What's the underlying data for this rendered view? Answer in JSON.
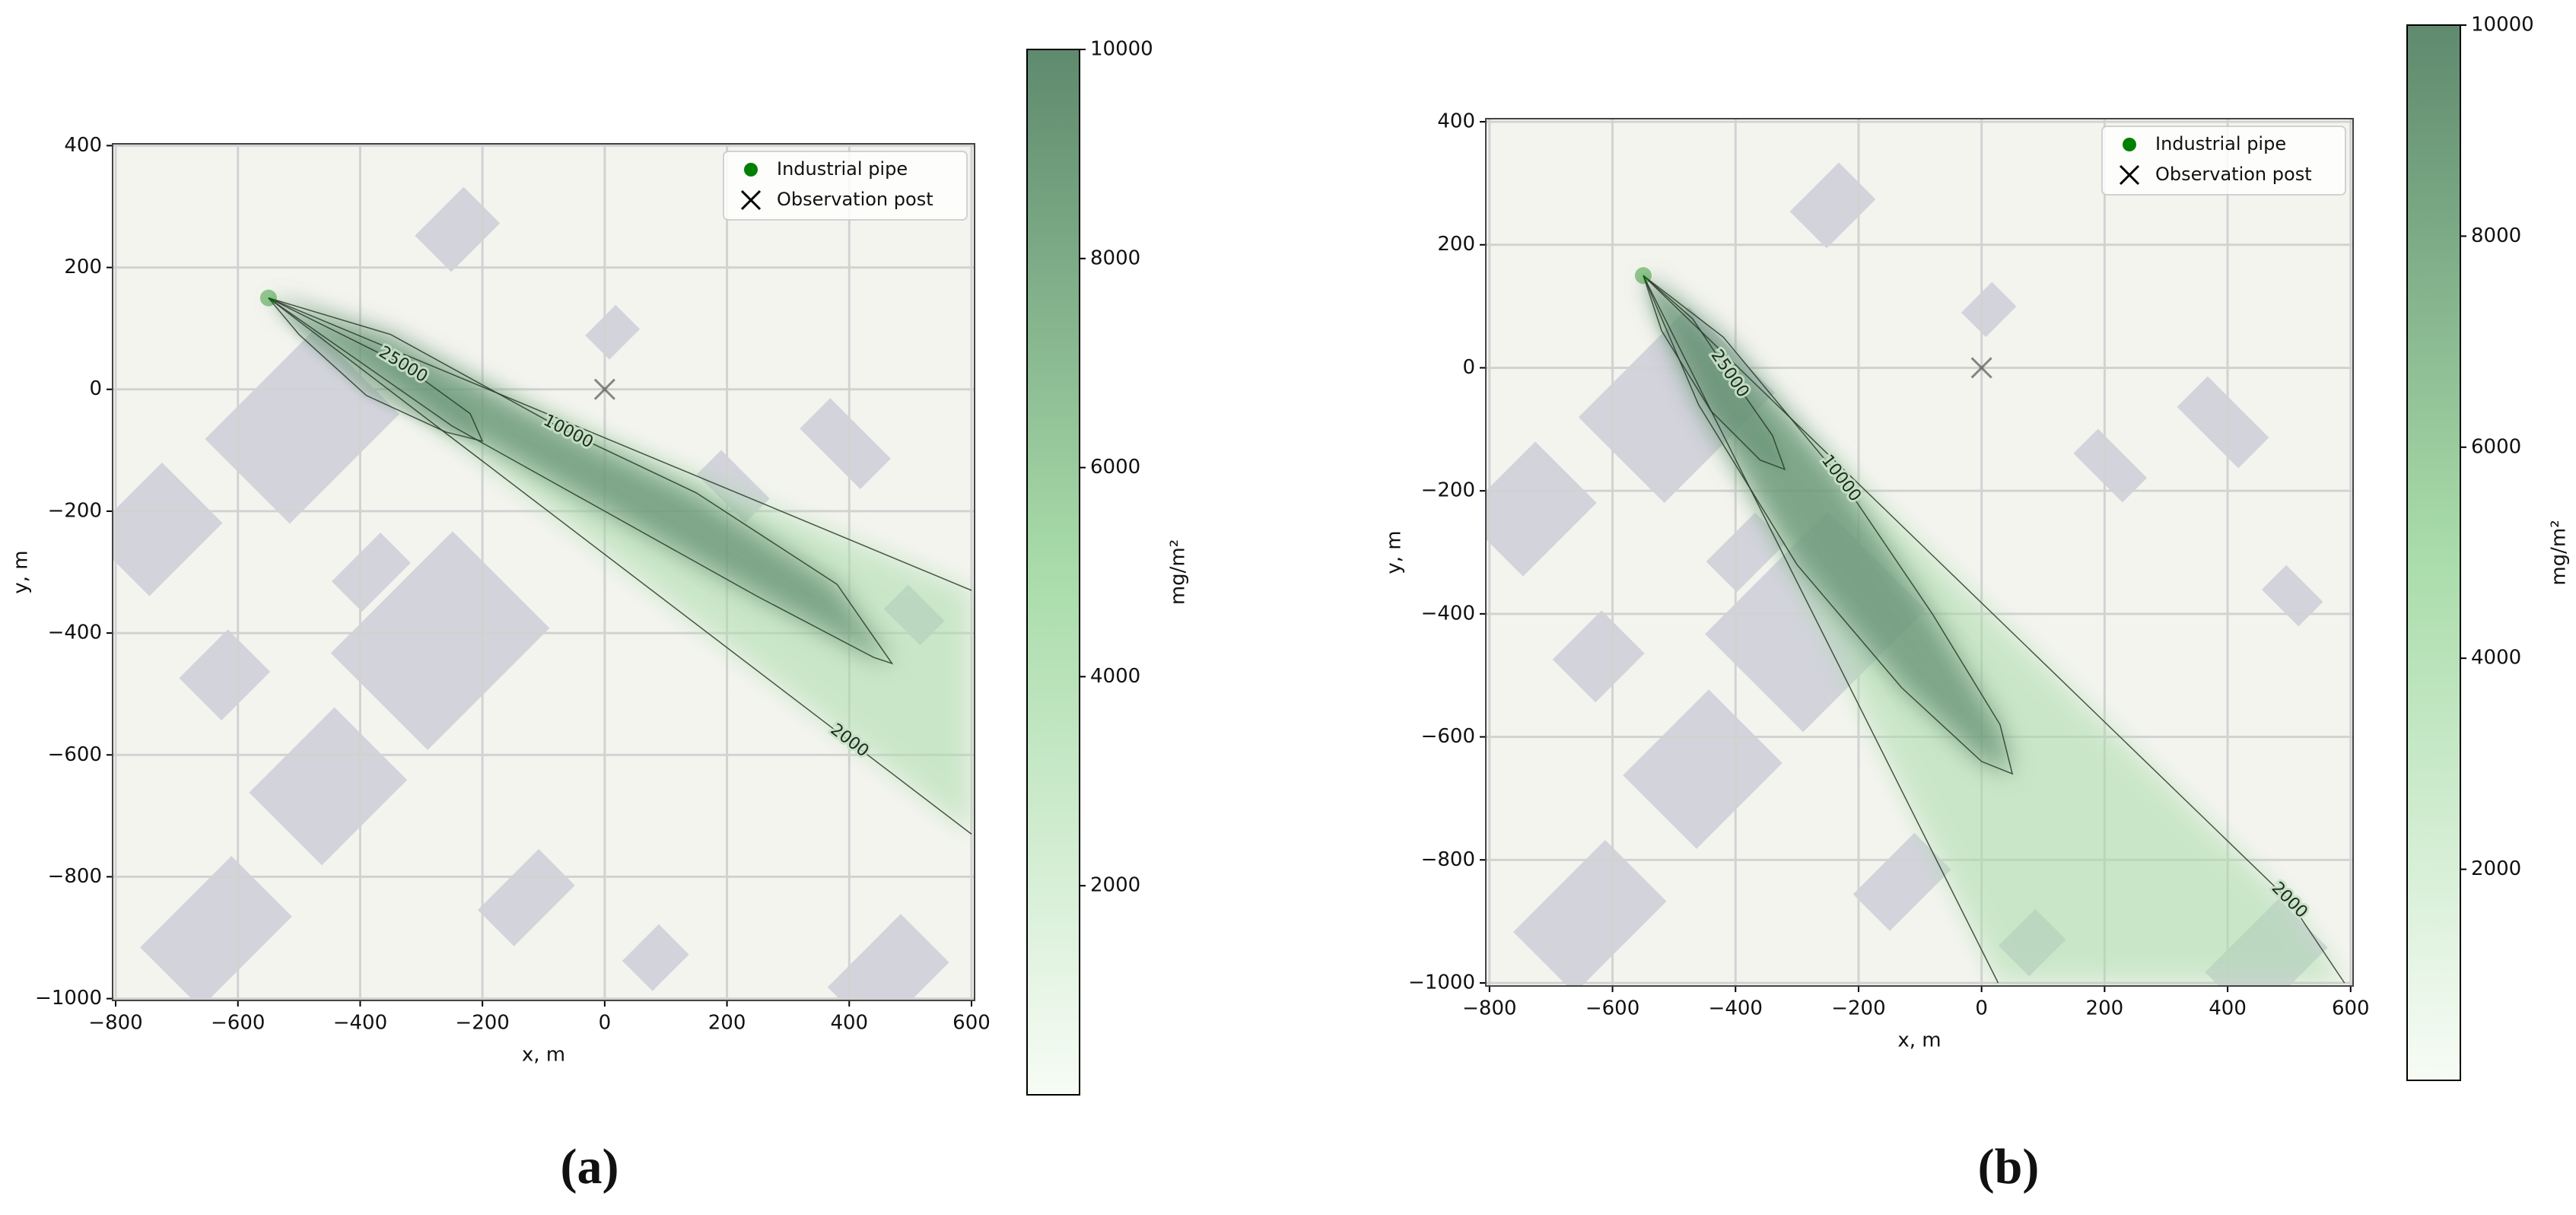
{
  "chart_data": [
    {
      "type": "contour",
      "caption": "(a)",
      "xlabel": "x, m",
      "ylabel": "y, m",
      "xlim": [
        -805,
        605
      ],
      "ylim": [
        -1003,
        403
      ],
      "xticks": [
        {
          "value": -800,
          "label": "−800"
        },
        {
          "value": -600,
          "label": "−600"
        },
        {
          "value": -400,
          "label": "−400"
        },
        {
          "value": -200,
          "label": "−200"
        },
        0,
        200,
        400,
        600
      ],
      "yticks": [
        400,
        200,
        0,
        {
          "value": -200,
          "label": "−200"
        },
        {
          "value": -400,
          "label": "−400"
        },
        {
          "value": -600,
          "label": "−600"
        },
        {
          "value": -800,
          "label": "−800"
        },
        {
          "value": -1000,
          "label": "−1000"
        }
      ],
      "grid": true,
      "legend": "upper right",
      "series": [
        {
          "name": "Industrial pipe",
          "color": "#008000",
          "marker": "o",
          "x": [
            -550
          ],
          "y": [
            150
          ]
        },
        {
          "name": "Observation post",
          "color": "#000000",
          "marker": "x",
          "x": [
            0
          ],
          "y": [
            0
          ]
        }
      ],
      "contours": [
        {
          "level": 2000,
          "x": [
            600,
            -550,
            400,
            600
          ],
          "y": [
            -330,
            150,
            -577,
            -730
          ]
        },
        {
          "level": 10000,
          "x": [
            -550,
            -350,
            -60,
            150,
            380,
            470,
            440,
            250,
            0,
            -250,
            -450,
            -550
          ],
          "y": [
            150,
            90,
            -70,
            -170,
            -320,
            -450,
            -440,
            -340,
            -200,
            -60,
            80,
            150
          ]
        },
        {
          "level": 25000,
          "x": [
            -550,
            -450,
            -330,
            -220,
            -200,
            -260,
            -390,
            -500,
            -550
          ],
          "y": [
            150,
            100,
            40,
            -40,
            -85,
            -70,
            -10,
            90,
            150
          ]
        }
      ],
      "colorbar": {
        "label": "mg/m²",
        "lim": [
          0,
          10000
        ],
        "ticks": [
          2000,
          4000,
          6000,
          8000,
          10000
        ],
        "colors": [
          "#f7fcf5",
          "#a9dcaa",
          "#5f8a6e"
        ]
      }
    },
    {
      "type": "contour",
      "caption": "(b)",
      "xlabel": "x, m",
      "ylabel": "y, m",
      "xlim": [
        -806,
        604
      ],
      "ylim": [
        -1005,
        405
      ],
      "xticks": [
        {
          "value": -800,
          "label": "−800"
        },
        {
          "value": -600,
          "label": "−600"
        },
        {
          "value": -400,
          "label": "−400"
        },
        {
          "value": -200,
          "label": "−200"
        },
        0,
        200,
        400,
        600
      ],
      "yticks": [
        400,
        200,
        0,
        {
          "value": -200,
          "label": "−200"
        },
        {
          "value": -400,
          "label": "−400"
        },
        {
          "value": -600,
          "label": "−600"
        },
        {
          "value": -800,
          "label": "−800"
        },
        {
          "value": -1000,
          "label": "−1000"
        }
      ],
      "grid": true,
      "legend": "upper right",
      "series": [
        {
          "name": "Industrial pipe",
          "color": "#008000",
          "marker": "o",
          "x": [
            -550
          ],
          "y": [
            150
          ]
        },
        {
          "name": "Observation post",
          "color": "#000000",
          "marker": "x",
          "x": [
            0
          ],
          "y": [
            0
          ]
        }
      ],
      "contours": [
        {
          "level": 2000,
          "x": [
            27,
            -550,
            500,
            590
          ],
          "y": [
            -1000,
            150,
            -866,
            -1000
          ]
        },
        {
          "level": 10000,
          "x": [
            -550,
            -420,
            -229,
            -80,
            30,
            50,
            0,
            -130,
            -300,
            -460,
            -550
          ],
          "y": [
            150,
            50,
            -180,
            -400,
            -580,
            -660,
            -640,
            -520,
            -320,
            -60,
            150
          ]
        },
        {
          "level": 25000,
          "x": [
            -550,
            -470,
            -410,
            -340,
            -320,
            -360,
            -440,
            -520,
            -550
          ],
          "y": [
            150,
            80,
            -10,
            -110,
            -165,
            -150,
            -70,
            60,
            150
          ]
        }
      ],
      "colorbar": {
        "label": "mg/m²",
        "lim": [
          0,
          10000
        ],
        "ticks": [
          2000,
          4000,
          6000,
          8000,
          10000
        ],
        "colors": [
          "#f7fcf5",
          "#a9dcaa",
          "#5f8a6e"
        ]
      }
    }
  ]
}
